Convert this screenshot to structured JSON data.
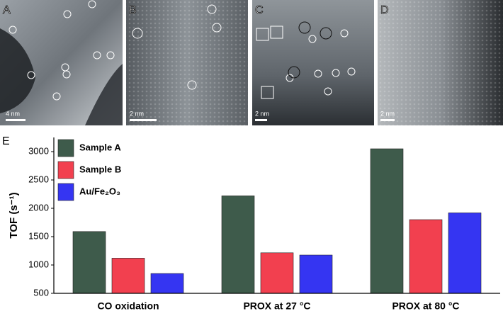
{
  "panels": [
    {
      "label": "A",
      "scale": "4 nm"
    },
    {
      "label": "B",
      "scale": "2 nm"
    },
    {
      "label": "C",
      "scale": "2 nm"
    },
    {
      "label": "D",
      "scale": "2 nm"
    }
  ],
  "chart_data": {
    "type": "bar",
    "panel_label": "E",
    "y_label": "TOF (s⁻¹)",
    "categories": [
      "CO oxidation",
      "PROX at 27 °C",
      "PROX at 80 °C"
    ],
    "series": [
      {
        "name": "Sample A",
        "color": "#3e5b4b",
        "values": [
          1590,
          2220,
          3050
        ]
      },
      {
        "name": "Sample B",
        "color": "#f2404f",
        "values": [
          1120,
          1215,
          1800
        ]
      },
      {
        "name": "Au/Fe₂O₃",
        "color": "#3535f2",
        "values": [
          850,
          1175,
          1920
        ]
      }
    ],
    "ylim": [
      500,
      3250
    ],
    "yticks": [
      500,
      1000,
      1500,
      2000,
      2500,
      3000
    ],
    "grid": false,
    "legend": "top-left"
  }
}
